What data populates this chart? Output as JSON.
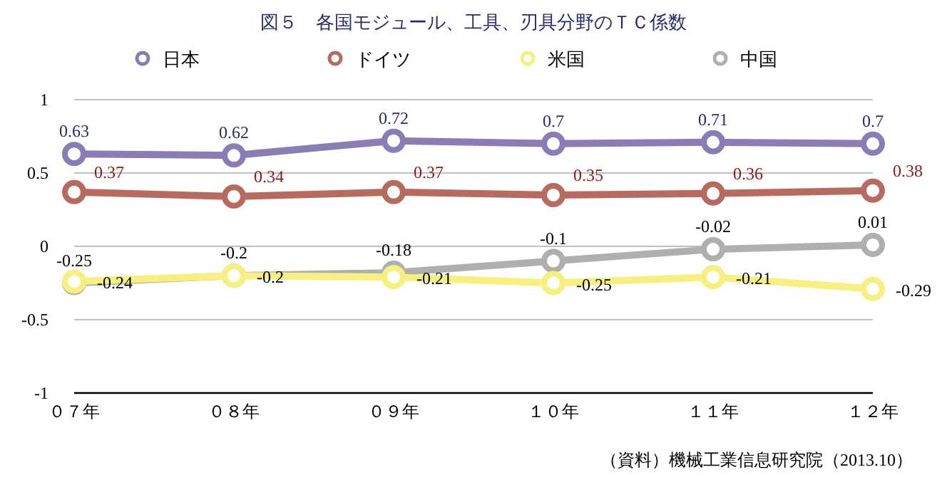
{
  "chart_data": {
    "type": "line",
    "title": "図５　各国モジュール、工具、刃具分野のＴＣ係数",
    "categories": [
      "０７年",
      "０８年",
      "０９年",
      "１０年",
      "１１年",
      "１２年"
    ],
    "series": [
      {
        "name": "日本",
        "color": "#8a7cb4",
        "values": [
          0.63,
          0.62,
          0.72,
          0.7,
          0.71,
          0.7
        ]
      },
      {
        "name": "ドイツ",
        "color": "#b86a5e",
        "values": [
          0.37,
          0.34,
          0.37,
          0.35,
          0.36,
          0.38
        ]
      },
      {
        "name": "米国",
        "color": "#f7f07e",
        "values": [
          -0.24,
          -0.2,
          -0.21,
          -0.25,
          -0.21,
          -0.29
        ]
      },
      {
        "name": "中国",
        "color": "#afafaf",
        "values": [
          -0.25,
          -0.2,
          -0.18,
          -0.1,
          -0.02,
          0.01
        ]
      }
    ],
    "ylim": [
      -1,
      1
    ],
    "yticks": [
      -1,
      -0.5,
      0,
      0.5,
      1
    ],
    "grid": "y",
    "legend": "top",
    "marker": "circle",
    "line_style": "solid",
    "data_labels": true,
    "annotations": [
      "（資料）機械工業信息研究院（2013.10）"
    ]
  }
}
